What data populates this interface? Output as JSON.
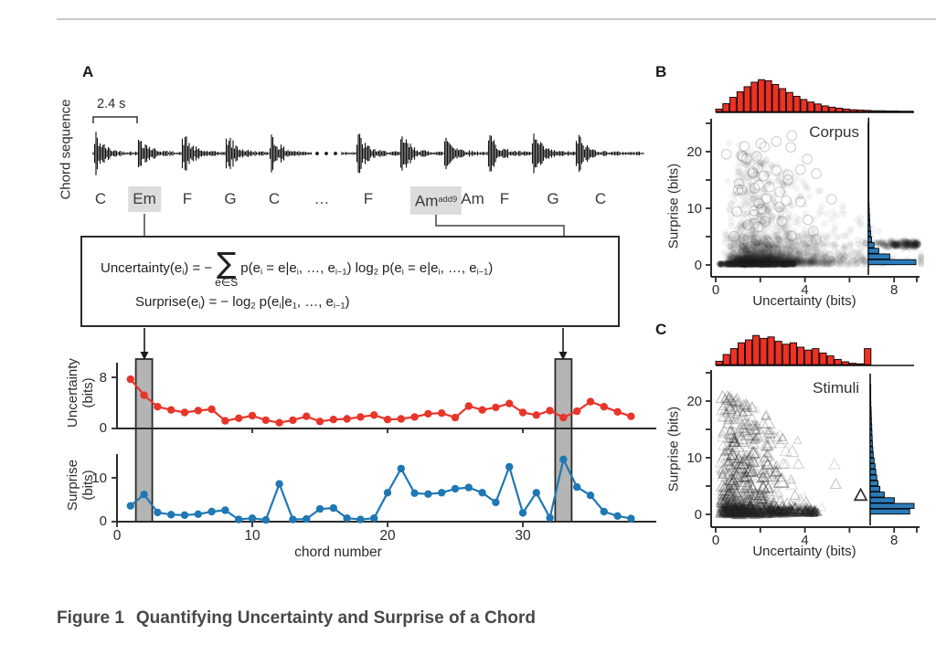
{
  "caption": {
    "label": "Figure 1",
    "title": "Quantifying Uncertainty and Surprise of a Chord"
  },
  "panels": {
    "a": "A",
    "b": "B",
    "c": "C"
  },
  "colors": {
    "red": "#e8352a",
    "hist_red": "#ee3124",
    "blue": "#1f77b4",
    "hist_blue": "#2b7bba",
    "gray_bar": "#b4b4b4",
    "highlight": "#dcdcdc",
    "axis": "#2b2b2b",
    "waveform": "#131313",
    "divider": "#c9c9c9"
  },
  "panel_a": {
    "label": "A",
    "sequence_axis_label": "Chord sequence",
    "duration_label": "2.4 s",
    "chords": [
      {
        "label": [
          [
            "C",
            "n"
          ]
        ],
        "x": 110,
        "highlight": false
      },
      {
        "label": [
          [
            "Em",
            "n"
          ]
        ],
        "x": 158,
        "highlight": true
      },
      {
        "label": [
          [
            "F",
            "n"
          ]
        ],
        "x": 205,
        "highlight": false
      },
      {
        "label": [
          [
            "G",
            "n"
          ]
        ],
        "x": 252,
        "highlight": false
      },
      {
        "label": [
          [
            "C",
            "n"
          ]
        ],
        "x": 300,
        "highlight": false
      },
      {
        "label": [
          [
            "…",
            "n"
          ]
        ],
        "x": 352,
        "highlight": false
      },
      {
        "label": [
          [
            "F",
            "n"
          ]
        ],
        "x": 403,
        "highlight": false
      },
      {
        "label": [
          [
            "Am",
            "n"
          ],
          [
            "add9",
            "p"
          ]
        ],
        "x": 477,
        "highlight": true
      },
      {
        "label": [
          [
            "Am",
            "n"
          ]
        ],
        "x": 517,
        "highlight": false
      },
      {
        "label": [
          [
            "F",
            "n"
          ]
        ],
        "x": 552,
        "highlight": false
      },
      {
        "label": [
          [
            "G",
            "n"
          ]
        ],
        "x": 605,
        "highlight": false
      },
      {
        "label": [
          [
            "C",
            "n"
          ]
        ],
        "x": 657,
        "highlight": false
      }
    ],
    "waveform": {
      "segments": [
        [
          102,
          341
        ],
        [
          374,
          704
        ]
      ],
      "onsets": [
        102,
        150,
        198,
        246,
        294,
        389,
        437,
        485,
        533,
        581,
        629
      ],
      "gap_dots_x": [
        347,
        357,
        367
      ]
    },
    "equations": {
      "sum_symbol": "∑",
      "sum_sub": "e∈S",
      "eq1_lhs": [
        [
          "Uncertainty(e",
          "n"
        ],
        [
          "i",
          "s"
        ],
        [
          ") = −",
          "n"
        ]
      ],
      "eq1_rhs": [
        [
          "p(e",
          "n"
        ],
        [
          "i",
          "s"
        ],
        [
          " = e|e",
          "n"
        ],
        [
          "i",
          "s"
        ],
        [
          ", …, e",
          "n"
        ],
        [
          "i−1",
          "s"
        ],
        [
          ") log",
          "n"
        ],
        [
          "2",
          "s"
        ],
        [
          " p(e",
          "n"
        ],
        [
          "i",
          "s"
        ],
        [
          " = e|e",
          "n"
        ],
        [
          "i",
          "s"
        ],
        [
          ", …, e",
          "n"
        ],
        [
          "i−1",
          "s"
        ],
        [
          ")",
          "n"
        ]
      ],
      "eq2": [
        [
          "Surprise(e",
          "n"
        ],
        [
          "i",
          "s"
        ],
        [
          ") = − log",
          "n"
        ],
        [
          "2",
          "s"
        ],
        [
          " p(e",
          "n"
        ],
        [
          "i",
          "s"
        ],
        [
          "|e",
          "n"
        ],
        [
          "1",
          "s"
        ],
        [
          ", …, e",
          "n"
        ],
        [
          "i−1",
          "s"
        ],
        [
          ")",
          "n"
        ]
      ]
    }
  },
  "chart_data": [
    {
      "id": "uncertainty_by_chord",
      "type": "line",
      "marker": "circle",
      "color_key": "red",
      "xlabel": "chord number",
      "ylabel": "Uncertainty (bits)",
      "ylabel_lines": [
        "Uncertainty",
        "(bits)"
      ],
      "x_start": 1,
      "values": [
        7.7,
        5.2,
        3.4,
        2.9,
        2.5,
        2.8,
        3.0,
        1.2,
        1.6,
        2.0,
        1.3,
        0.9,
        1.3,
        1.9,
        1.1,
        1.4,
        1.5,
        1.8,
        2.1,
        1.4,
        1.5,
        1.8,
        2.3,
        2.4,
        1.7,
        3.5,
        2.9,
        3.3,
        3.9,
        2.5,
        2.1,
        2.8,
        1.7,
        2.7,
        4.2,
        3.4,
        2.6,
        1.9
      ],
      "yticks": [
        0,
        8
      ],
      "xticks_marks": [
        10,
        20,
        30
      ],
      "ylim": [
        0,
        11
      ],
      "xlim": [
        0,
        40
      ],
      "highlighted_chords": [
        2,
        33
      ]
    },
    {
      "id": "surprise_by_chord",
      "type": "line",
      "marker": "circle",
      "color_key": "blue",
      "xlabel": "chord number",
      "ylabel": "Surprise (bits)",
      "ylabel_lines": [
        "Surprise",
        "(bits)"
      ],
      "x_start": 1,
      "values": [
        3.6,
        6.2,
        2.1,
        1.6,
        1.5,
        1.7,
        2.3,
        2.6,
        0.5,
        0.8,
        0.4,
        8.6,
        0.5,
        0.6,
        2.9,
        3.1,
        0.8,
        0.5,
        0.8,
        6.6,
        12.1,
        6.5,
        6.3,
        6.6,
        7.5,
        7.8,
        6.6,
        4.4,
        12.5,
        2.0,
        6.6,
        0.9,
        14.2,
        7.9,
        6.0,
        2.3,
        1.3,
        0.7
      ],
      "yticks": [
        0,
        10
      ],
      "xticks": [
        0,
        10,
        20,
        30
      ],
      "ylim": [
        0,
        16.5
      ],
      "xlim": [
        0,
        40
      ],
      "highlighted_chords": [
        2,
        33
      ]
    },
    {
      "id": "corpus_scatter",
      "type": "scatter",
      "label": "Corpus",
      "marker": "circle",
      "xlabel": "Uncertainty (bits)",
      "ylabel": "Surprise (bits)",
      "xticks": [
        0,
        4,
        8
      ],
      "yticks": [
        0,
        10,
        20
      ],
      "xlim": [
        0,
        9.3
      ],
      "ylim": [
        0,
        26
      ],
      "n_points_approx": 3100,
      "cloud_note": "dense mass at uncertainty 1-4 and surprise 0-5, spread up to surprise 24 at low uncertainty, dark band near surprise 3.5 for uncertainty 6-9",
      "top_hist": {
        "bin_width_bits": 0.33,
        "heights": [
          0.08,
          0.25,
          0.45,
          0.62,
          0.78,
          0.92,
          1.0,
          0.97,
          0.85,
          0.72,
          0.6,
          0.48,
          0.38,
          0.3,
          0.24,
          0.18,
          0.14,
          0.11,
          0.08,
          0.06,
          0.05,
          0.04,
          0.03,
          0.03,
          0.02,
          0.02,
          0.015,
          0.01
        ]
      },
      "right_hist": {
        "bin_width_bits": 1,
        "heights": [
          1.0,
          0.45,
          0.22,
          0.12,
          0.07,
          0.05,
          0.04,
          0.03,
          0.025,
          0.02,
          0.015,
          0.012,
          0.01,
          0.008,
          0.006,
          0.005,
          0.004,
          0.003,
          0.003,
          0.002,
          0.002,
          0.0015,
          0.001,
          0.001,
          0.0008,
          0.0005
        ]
      }
    },
    {
      "id": "stimuli_scatter",
      "type": "scatter",
      "label": "Stimuli",
      "marker": "triangle",
      "xlabel": "Uncertainty (bits)",
      "ylabel": "Surprise (bits)",
      "xticks": [
        0,
        4,
        8
      ],
      "yticks": [
        0,
        10,
        20
      ],
      "xlim": [
        0,
        9.3
      ],
      "ylim": [
        0,
        26
      ],
      "n_points_approx": 1000,
      "outlier": {
        "x": 6.5,
        "y": 3.3
      },
      "cloud_note": "open triangles spread over uncertainty 0.3-6.6 and surprise 0-22, dense dark band near surprise 0-1",
      "top_hist": {
        "bin_width_bits": 0.33,
        "heights": [
          0.12,
          0.35,
          0.55,
          0.75,
          0.85,
          1.0,
          0.9,
          0.95,
          0.8,
          0.7,
          0.75,
          0.6,
          0.5,
          0.55,
          0.4,
          0.3,
          0.18,
          0.1,
          0.05,
          0.03,
          0.55
        ]
      },
      "right_hist": {
        "bin_width_bits": 1,
        "heights": [
          0.9,
          1.0,
          0.55,
          0.32,
          0.22,
          0.18,
          0.15,
          0.13,
          0.11,
          0.09,
          0.07,
          0.06,
          0.05,
          0.045,
          0.04,
          0.035,
          0.03,
          0.025,
          0.02,
          0.015,
          0.012,
          0.01,
          0.008
        ]
      }
    }
  ]
}
